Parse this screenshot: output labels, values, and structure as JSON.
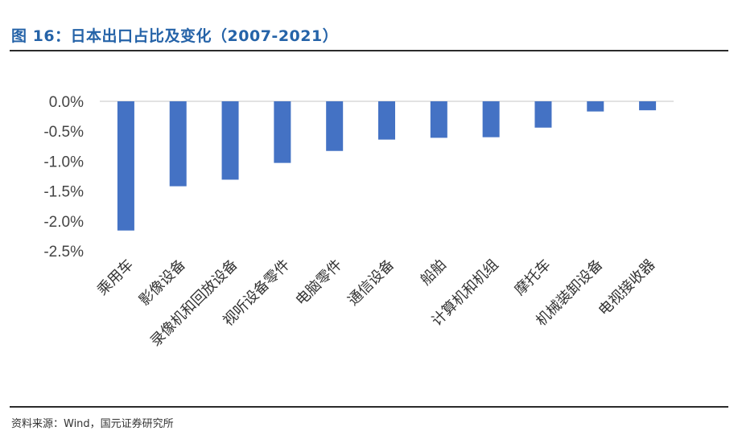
{
  "header": {
    "title": "图 16：日本出口占比及变化（2007-2021）"
  },
  "footer": {
    "source": "资料来源：Wind，国元证券研究所"
  },
  "chart_data": {
    "type": "bar",
    "title": "",
    "xlabel": "",
    "ylabel": "",
    "ylim": [
      -2.5,
      0.0
    ],
    "yticks": [
      "0.0%",
      "-0.5%",
      "-1.0%",
      "-1.5%",
      "-2.0%",
      "-2.5%"
    ],
    "grid": false,
    "bar_color": "#4472c4",
    "categories": [
      "乘用车",
      "影像设备",
      "录像机和回放设备",
      "视听设备零件",
      "电脑零件",
      "通信设备",
      "船舶",
      "计算机和机组",
      "摩托车",
      "机械装卸设备",
      "电视接收器"
    ],
    "values": [
      -2.16,
      -1.42,
      -1.31,
      -1.03,
      -0.83,
      -0.64,
      -0.61,
      -0.6,
      -0.44,
      -0.17,
      -0.15
    ]
  }
}
